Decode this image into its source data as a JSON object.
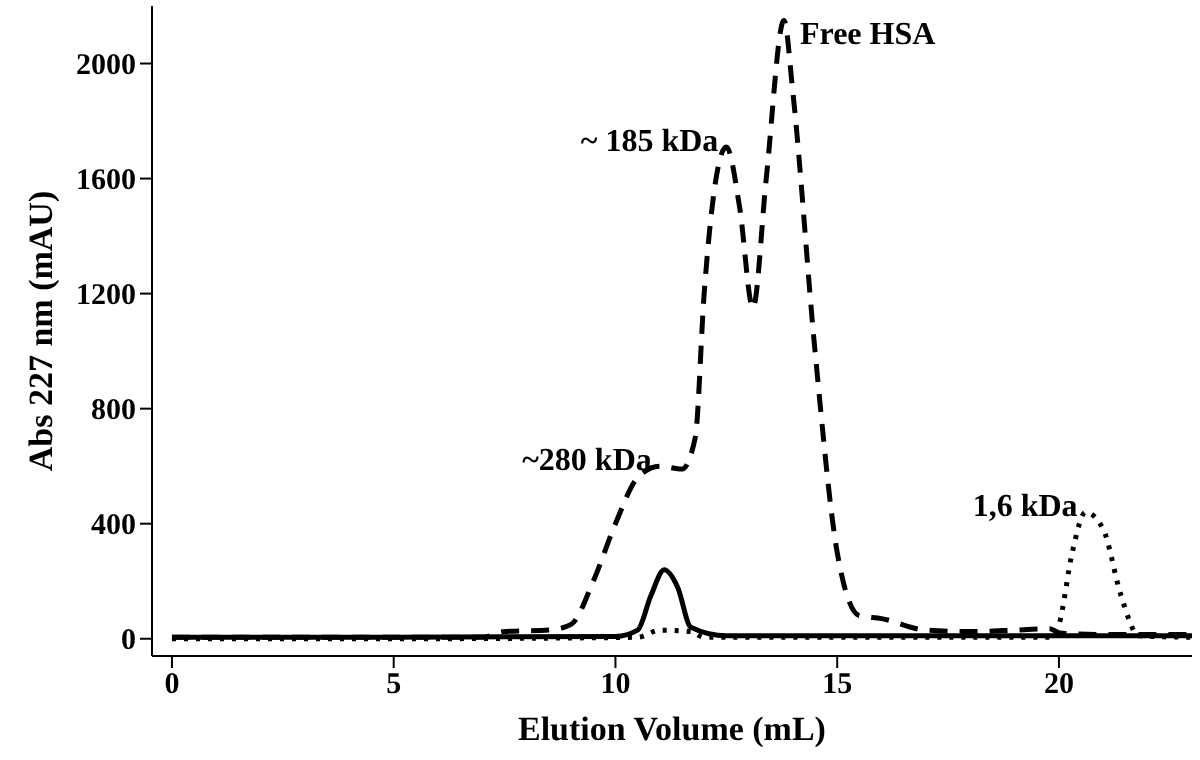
{
  "chart_data": {
    "type": "line",
    "xlabel": "Elution Volume (mL)",
    "ylabel": "Abs 227 nm (mAU)",
    "xlim": [
      -0.45,
      23
    ],
    "ylim": [
      -60,
      2200
    ],
    "xticks": [
      0,
      5,
      10,
      15,
      20
    ],
    "yticks": [
      0,
      400,
      800,
      1200,
      1600,
      2000
    ],
    "grid": false,
    "legend": false,
    "marker": "none",
    "series": [
      {
        "color": "#000000",
        "line_style": "dashed",
        "x": [
          0,
          3,
          7,
          7.5,
          8.5,
          9,
          9.5,
          10,
          10.5,
          11,
          11.5,
          11.8,
          12,
          12.5,
          12.8,
          13.1,
          13.4,
          13.8,
          14,
          14.5,
          15,
          15.5,
          16,
          17,
          18,
          19,
          19.8,
          20,
          21,
          23
        ],
        "values": [
          5,
          5,
          5,
          25,
          30,
          50,
          200,
          400,
          560,
          600,
          590,
          700,
          1200,
          1710,
          1500,
          1150,
          1600,
          2150,
          1900,
          1000,
          300,
          80,
          70,
          30,
          25,
          30,
          35,
          20,
          15,
          15
        ]
      },
      {
        "color": "#000000",
        "line_style": "solid",
        "x": [
          0,
          5,
          10,
          10.5,
          10.8,
          11.1,
          11.4,
          11.7,
          12.5,
          16,
          23
        ],
        "values": [
          5,
          5,
          8,
          30,
          150,
          240,
          180,
          40,
          10,
          10,
          10
        ]
      },
      {
        "color": "#000000",
        "line_style": "dotted",
        "x": [
          0,
          5,
          10.5,
          11,
          11.7,
          12,
          16,
          19.8,
          20,
          20.3,
          20.6,
          21,
          21.4,
          21.8,
          23
        ],
        "values": [
          0,
          0,
          5,
          30,
          25,
          5,
          5,
          5,
          50,
          300,
          440,
          380,
          150,
          10,
          5
        ]
      }
    ],
    "annotations": [
      {
        "text": "Free HSA",
        "x": 13.8,
        "y": 2150
      },
      {
        "text": "~ 185 kDa",
        "x": 12.5,
        "y": 1710
      },
      {
        "text": "~280 kDa",
        "x": 11,
        "y": 600
      },
      {
        "text": "1,6 kDa",
        "x": 20.6,
        "y": 440
      }
    ]
  }
}
